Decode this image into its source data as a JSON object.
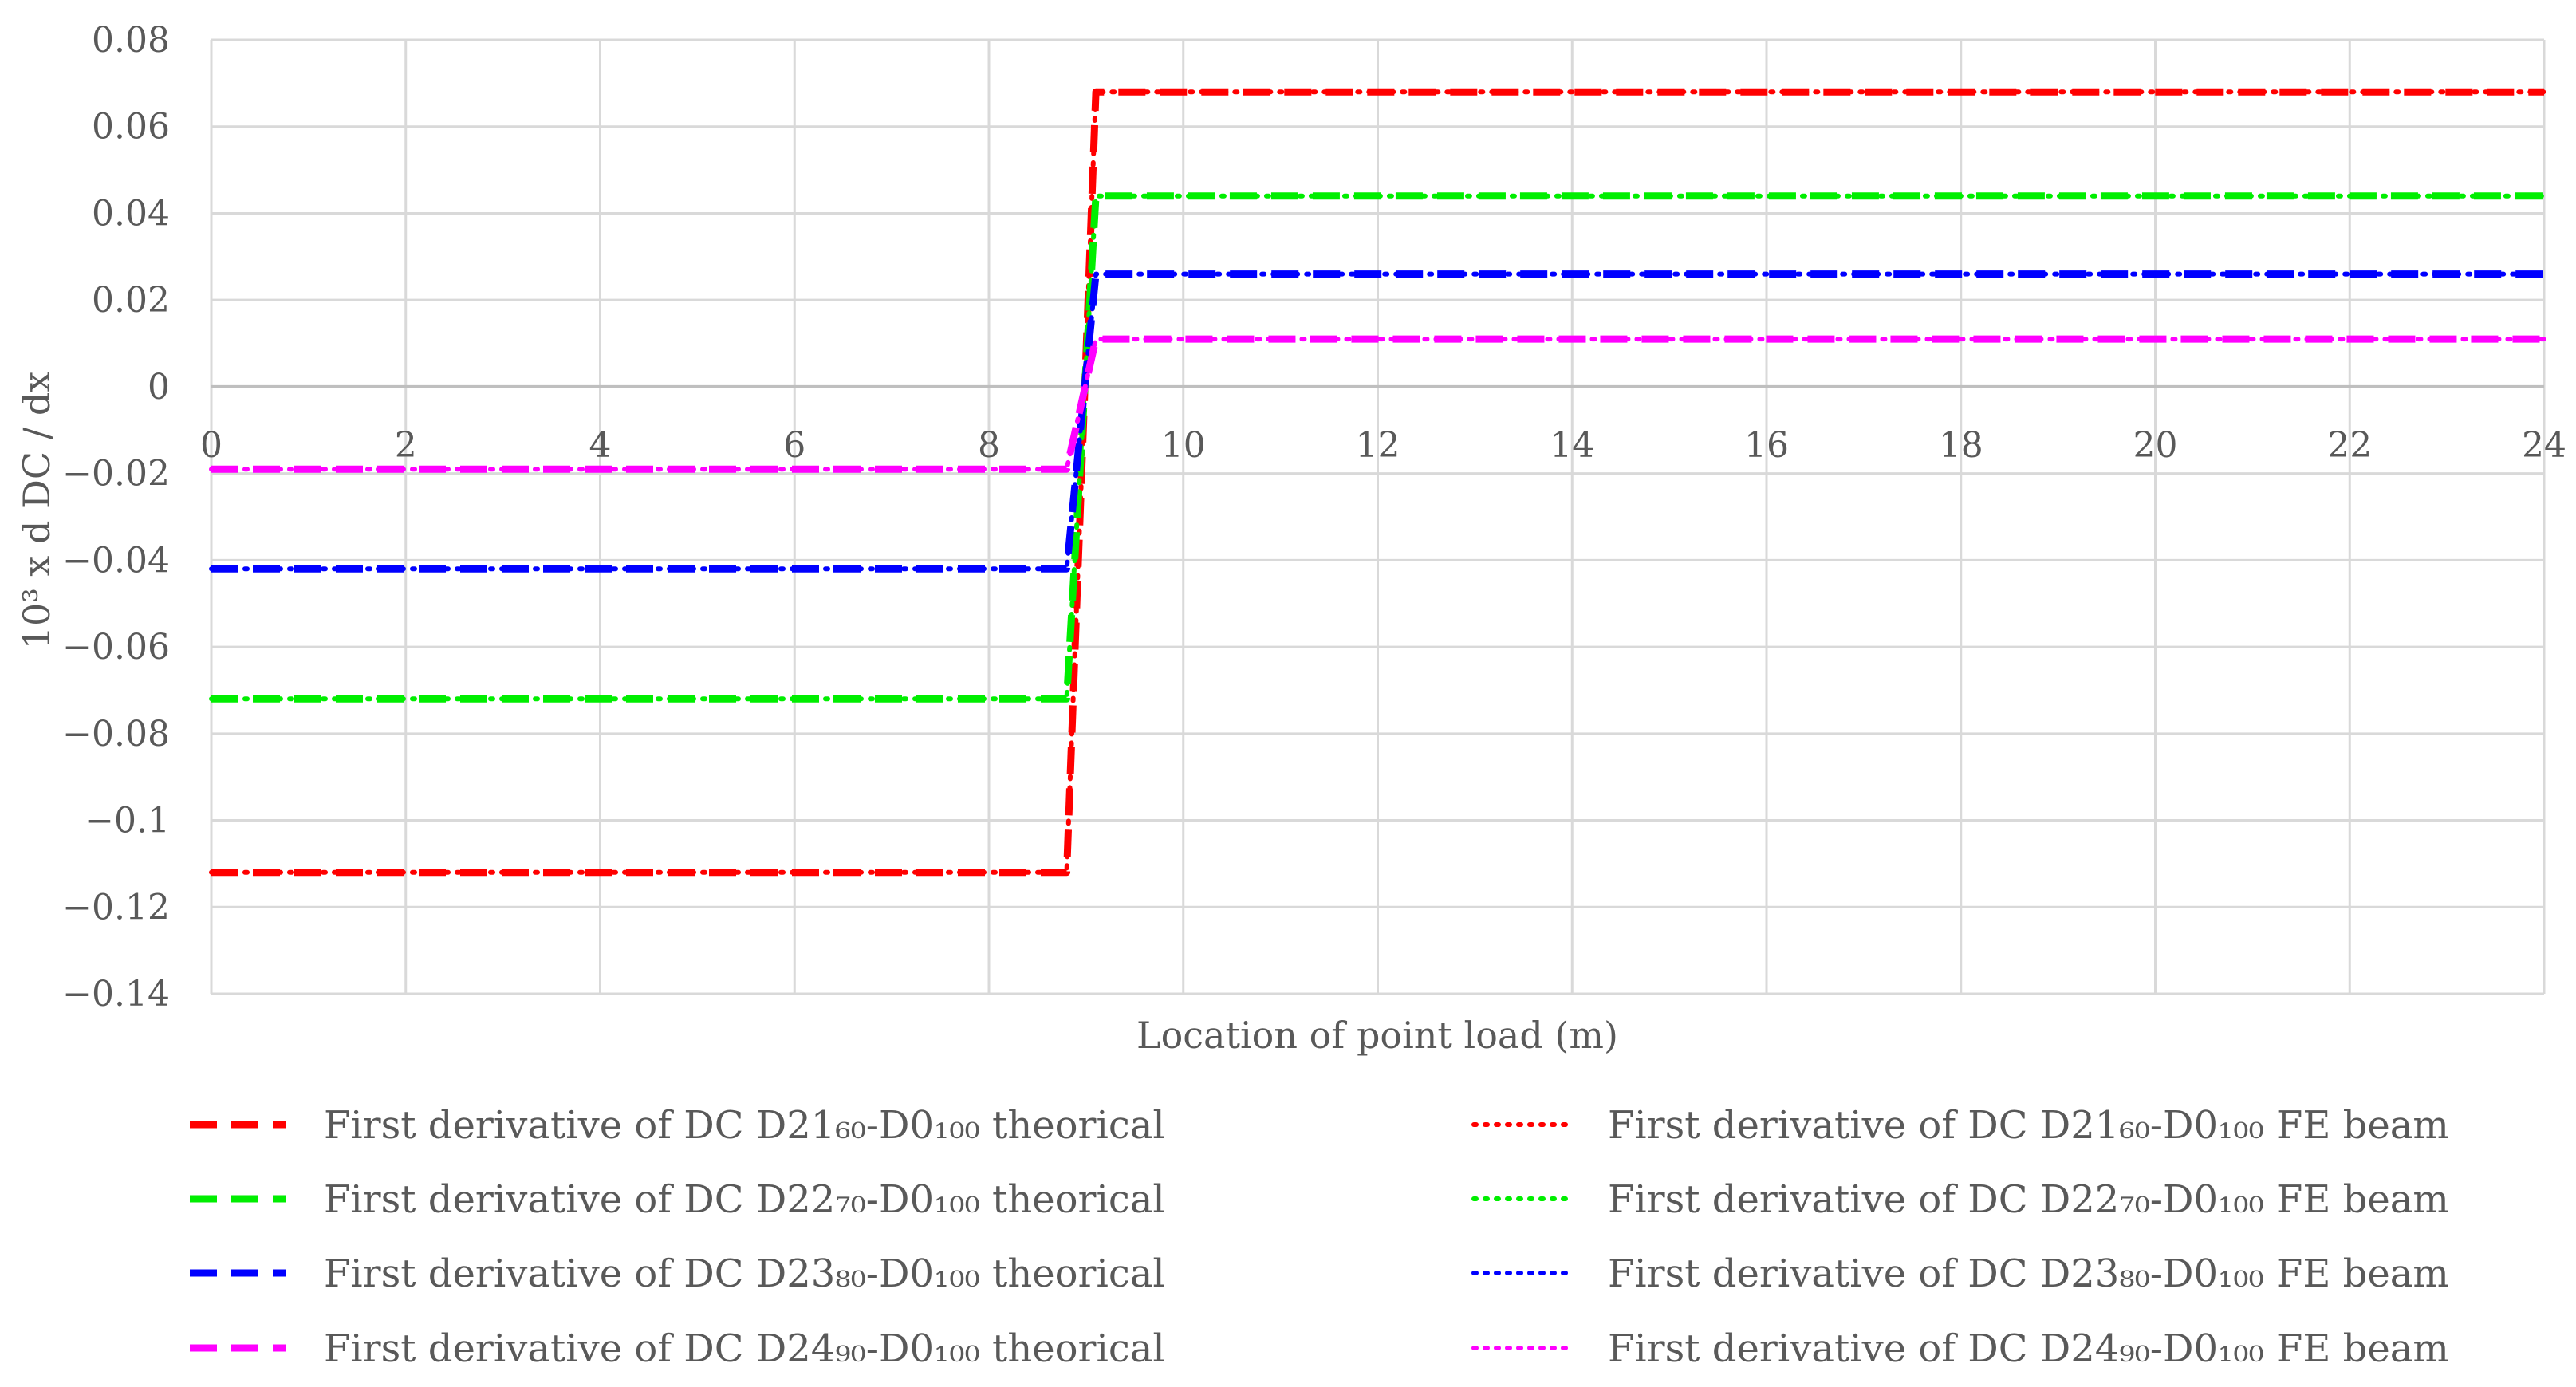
{
  "chart_data": {
    "type": "line",
    "title": "",
    "xlabel": "Location of point load (m)",
    "ylabel": "10³ x d DC / dx",
    "xlim": [
      0,
      24
    ],
    "ylim": [
      -0.14,
      0.08
    ],
    "x_ticks": [
      "0",
      "2",
      "4",
      "6",
      "8",
      "10",
      "12",
      "14",
      "16",
      "18",
      "20",
      "22",
      "24"
    ],
    "y_ticks": [
      "0.08",
      "0.06",
      "0.04",
      "0.02",
      "0",
      "−0.02",
      "−0.04",
      "−0.06",
      "−0.08",
      "−0.1",
      "−0.12",
      "−0.14"
    ],
    "grid": true,
    "legend_position": "bottom",
    "series": [
      {
        "name": "First derivative of DC D21₆₀-D0₁₀₀ theorical",
        "color": "#ff0000",
        "style": "dashed",
        "x": [
          0,
          8.8,
          9.1,
          24
        ],
        "y": [
          -0.112,
          -0.112,
          0.068,
          0.068
        ]
      },
      {
        "name": "First derivative of DC D21₆₀-D0₁₀₀ FE beam",
        "color": "#ff0000",
        "style": "dotted",
        "x": [
          0,
          8.8,
          9.1,
          24
        ],
        "y": [
          -0.112,
          -0.112,
          0.068,
          0.068
        ]
      },
      {
        "name": "First derivative of DC D22₇₀-D0₁₀₀ theorical",
        "color": "#00ee00",
        "style": "dashed",
        "x": [
          0,
          8.8,
          9.1,
          24
        ],
        "y": [
          -0.072,
          -0.072,
          0.044,
          0.044
        ]
      },
      {
        "name": "First derivative of DC D22₇₀-D0₁₀₀ FE beam",
        "color": "#00ee00",
        "style": "dotted",
        "x": [
          0,
          8.8,
          9.1,
          24
        ],
        "y": [
          -0.072,
          -0.072,
          0.044,
          0.044
        ]
      },
      {
        "name": "First derivative of DC D23₈₀-D0₁₀₀ theorical",
        "color": "#0000ff",
        "style": "dashed",
        "x": [
          0,
          8.8,
          9.1,
          24
        ],
        "y": [
          -0.042,
          -0.042,
          0.026,
          0.026
        ]
      },
      {
        "name": "First derivative of DC D23₈₀-D0₁₀₀ FE beam",
        "color": "#0000ff",
        "style": "dotted",
        "x": [
          0,
          8.8,
          9.1,
          24
        ],
        "y": [
          -0.042,
          -0.042,
          0.026,
          0.026
        ]
      },
      {
        "name": "First derivative of DC D24₉₀-D0₁₀₀ theorical",
        "color": "#ff00ff",
        "style": "dashed",
        "x": [
          0,
          8.8,
          9.1,
          24
        ],
        "y": [
          -0.019,
          -0.019,
          0.011,
          0.011
        ]
      },
      {
        "name": "First derivative of DC D24₉₀-D0₁₀₀ FE beam",
        "color": "#ff00ff",
        "style": "dotted",
        "x": [
          0,
          8.8,
          9.1,
          24
        ],
        "y": [
          -0.019,
          -0.019,
          0.011,
          0.011
        ]
      }
    ]
  }
}
